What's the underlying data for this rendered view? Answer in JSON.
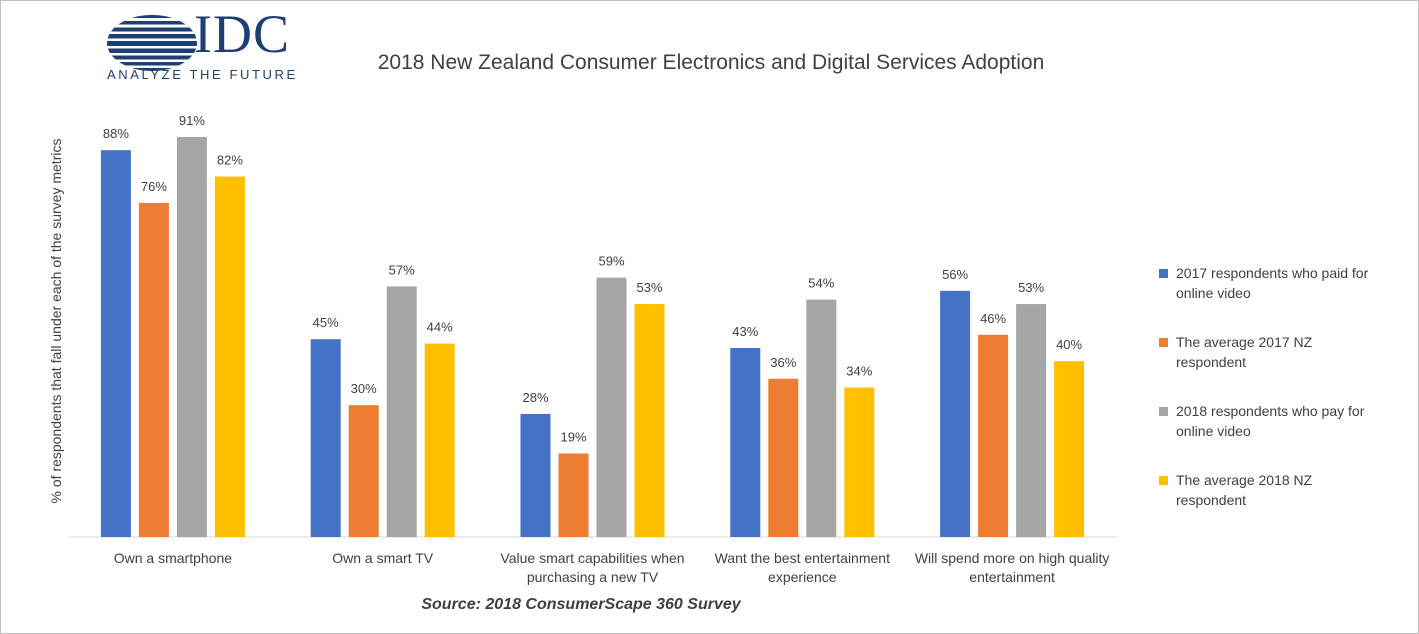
{
  "logo": {
    "name": "IDC",
    "tagline": "ANALYZE THE FUTURE",
    "color": "#1d3f73"
  },
  "chart_data": {
    "type": "bar",
    "title": "2018 New Zealand Consumer  Electronics and Digital Services  Adoption",
    "xlabel": "",
    "ylabel": "% of respondents that fall under each of the survey metrics",
    "ylim": [
      0,
      100
    ],
    "grid": false,
    "legend_position": "right",
    "categories": [
      [
        "Own a smartphone"
      ],
      [
        "Own a smart TV"
      ],
      [
        "Value smart capabilities when",
        "purchasing a new TV"
      ],
      [
        "Want the best entertainment",
        "experience"
      ],
      [
        "Will spend more on high quality",
        "entertainment"
      ]
    ],
    "series": [
      {
        "name": [
          "2017 respondents who paid for",
          "online video"
        ],
        "color": "#4472c4",
        "values": [
          88,
          45,
          28,
          43,
          56
        ],
        "labels": [
          "88%",
          "45%",
          "28%",
          "43%",
          "56%"
        ]
      },
      {
        "name": [
          "The average 2017 NZ",
          "respondent"
        ],
        "color": "#ed7d31",
        "values": [
          76,
          30,
          19,
          36,
          46
        ],
        "labels": [
          "76%",
          "30%",
          "19%",
          "36%",
          "46%"
        ]
      },
      {
        "name": [
          "2018 respondents who pay for",
          "online video"
        ],
        "color": "#a5a5a5",
        "values": [
          91,
          57,
          59,
          54,
          53
        ],
        "labels": [
          "91%",
          "57%",
          "59%",
          "54%",
          "53%"
        ]
      },
      {
        "name": [
          "The average 2018 NZ",
          "respondent"
        ],
        "color": "#ffc000",
        "values": [
          82,
          44,
          53,
          34,
          40
        ],
        "labels": [
          "82%",
          "44%",
          "53%",
          "34%",
          "40%"
        ]
      }
    ],
    "source": "Source: 2018 ConsumerScape 360 Survey"
  }
}
